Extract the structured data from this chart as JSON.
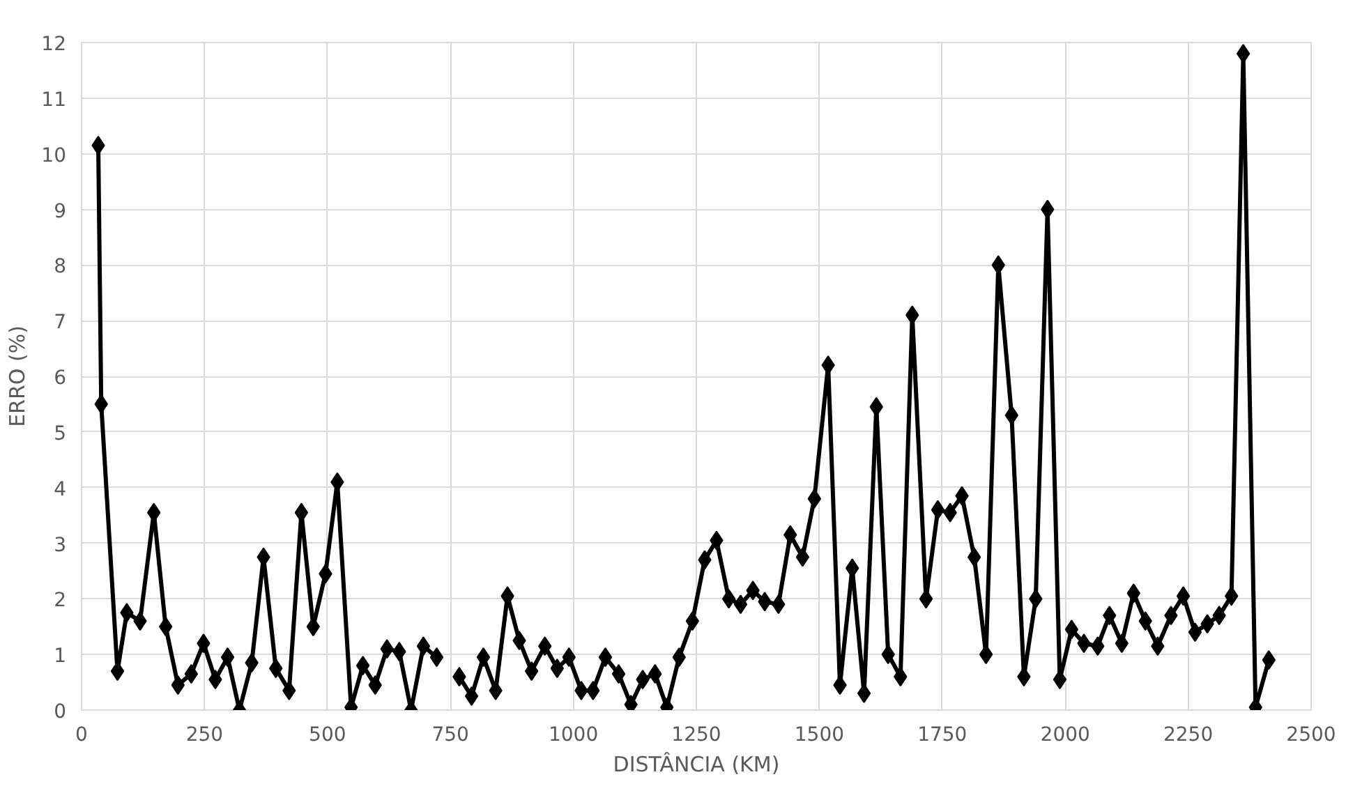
{
  "chart_data": {
    "type": "line",
    "xlabel": "DISTÂNCIA (KM)",
    "ylabel": "ERRO (%)",
    "x": [
      34,
      40,
      73,
      92,
      119,
      147,
      171,
      196,
      223,
      248,
      272,
      297,
      321,
      346,
      370,
      395,
      422,
      447,
      471,
      496,
      520,
      548,
      572,
      597,
      621,
      646,
      670,
      695,
      722,
      745,
      768,
      793,
      817,
      842,
      866,
      890,
      915,
      942,
      967,
      991,
      1016,
      1040,
      1065,
      1092,
      1117,
      1141,
      1166,
      1190,
      1215,
      1242,
      1267,
      1291,
      1316,
      1340,
      1365,
      1389,
      1417,
      1441,
      1466,
      1490,
      1518,
      1542,
      1567,
      1591,
      1616,
      1640,
      1665,
      1689,
      1717,
      1741,
      1766,
      1790,
      1815,
      1839,
      1864,
      1891,
      1916,
      1940,
      1964,
      1989,
      2013,
      2038,
      2066,
      2090,
      2115,
      2139,
      2163,
      2188,
      2215,
      2240,
      2264,
      2289,
      2313,
      2338,
      2362,
      2387,
      2414
    ],
    "series": [
      {
        "color": "#000000",
        "values": [
          10.15,
          5.5,
          0.7,
          1.75,
          1.6,
          3.55,
          1.5,
          0.45,
          0.65,
          1.2,
          0.55,
          0.95,
          0.0,
          0.85,
          2.75,
          0.75,
          0.35,
          3.55,
          1.5,
          2.45,
          4.1,
          0.05,
          0.8,
          0.45,
          1.1,
          1.05,
          0.0,
          1.15,
          0.95,
          null,
          0.6,
          0.25,
          0.95,
          0.35,
          2.05,
          1.25,
          0.7,
          1.15,
          0.75,
          0.95,
          0.35,
          0.35,
          0.95,
          0.65,
          0.1,
          0.55,
          0.65,
          0.05,
          0.95,
          1.6,
          2.7,
          3.05,
          2.0,
          1.9,
          2.15,
          1.95,
          1.9,
          3.15,
          2.75,
          3.8,
          6.2,
          0.45,
          2.55,
          0.3,
          5.45,
          1.0,
          0.6,
          7.1,
          2.0,
          3.6,
          3.55,
          3.85,
          2.75,
          1.0,
          8.0,
          5.3,
          0.6,
          2.0,
          9.0,
          0.55,
          1.45,
          1.2,
          1.15,
          1.7,
          1.2,
          2.1,
          1.6,
          1.15,
          1.7,
          2.05,
          1.4,
          1.55,
          1.7,
          2.05,
          11.8,
          0.05,
          0.9
        ]
      }
    ],
    "xlim": [
      0,
      2500
    ],
    "xticks": [
      0,
      250,
      500,
      750,
      1000,
      1250,
      1500,
      1750,
      2000,
      2250,
      2500
    ],
    "ylim": [
      0,
      12
    ],
    "yticks": [
      0,
      1,
      2,
      3,
      4,
      5,
      6,
      7,
      8,
      9,
      10,
      11,
      12
    ],
    "grid": true,
    "marker": "diamond",
    "line_style": "solid"
  }
}
